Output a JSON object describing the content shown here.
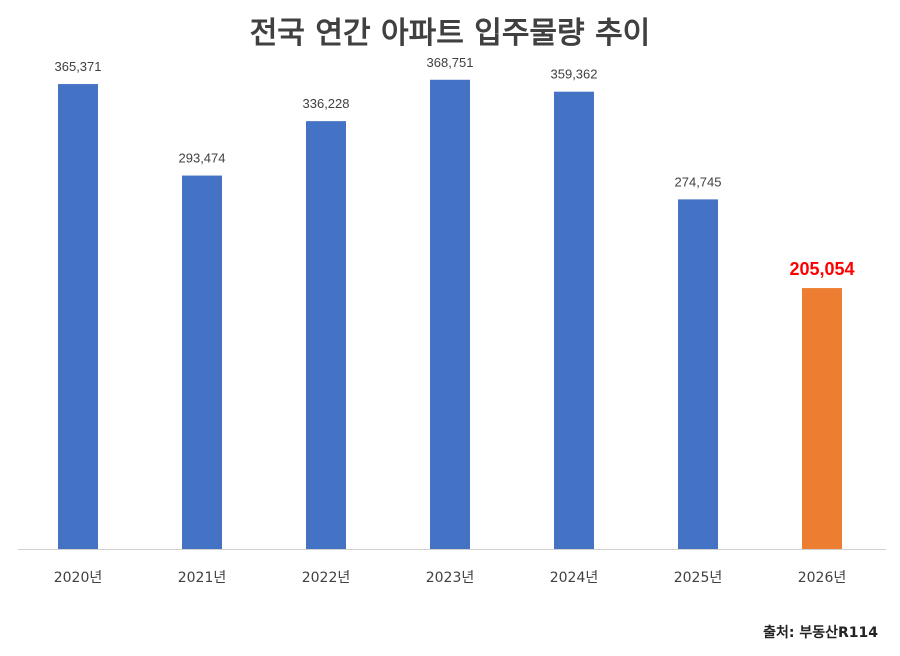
{
  "title": "전국 연간 아파트 입주물량 추이",
  "source": "출처: 부동산R114",
  "colors": {
    "bar": "#4472c4",
    "highlight_bar": "#ed7d31",
    "highlight_label": "#ff0000",
    "axis": "#d0d0d0",
    "label": "#404040"
  },
  "chart_data": {
    "type": "bar",
    "title": "전국 연간 아파트 입주물량 추이",
    "categories": [
      "2020년",
      "2021년",
      "2022년",
      "2023년",
      "2024년",
      "2025년",
      "2026년"
    ],
    "values": [
      365371,
      293474,
      336228,
      368751,
      359362,
      274745,
      205054
    ],
    "value_labels": [
      "365,371",
      "293,474",
      "336,228",
      "368,751",
      "359,362",
      "274,745",
      "205,054"
    ],
    "highlight_index": 6,
    "ylim": [
      0,
      400000
    ],
    "grid": false,
    "legend": "none"
  }
}
